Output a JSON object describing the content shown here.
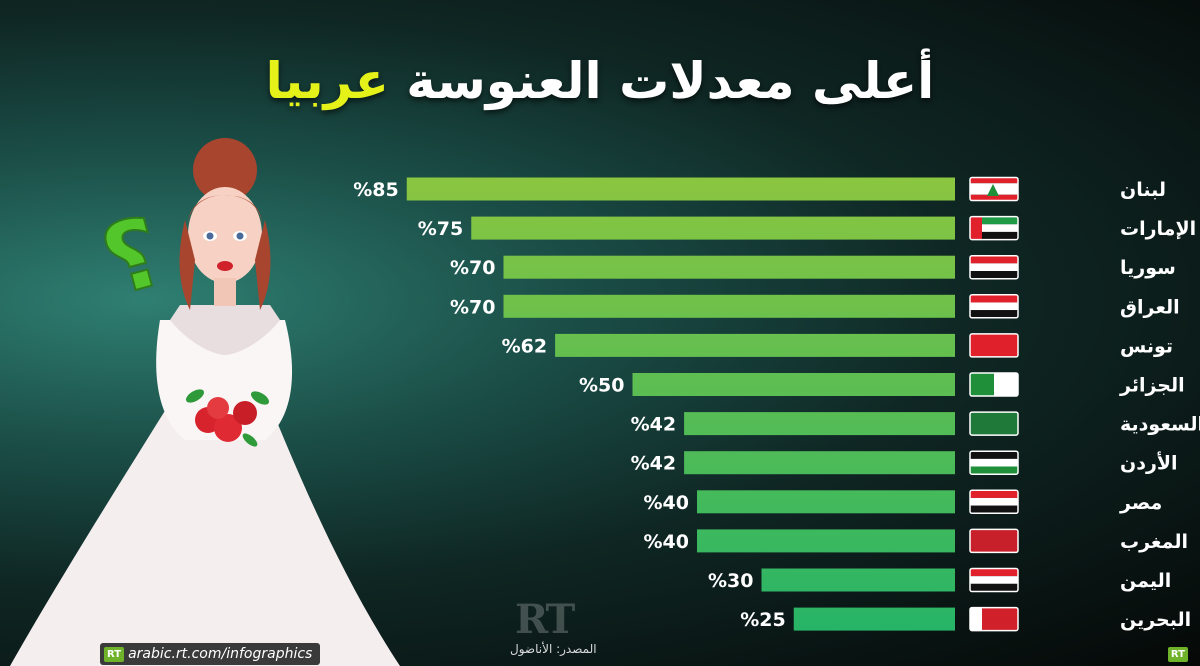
{
  "title_main": "أعلى معدلات العنوسة",
  "title_accent": "عربيا",
  "footer_url": "arabic.rt.com/infographics",
  "logo_text": "RT",
  "source": "المصدر: الأناضول",
  "colors": {
    "bar_top": "#8dc63f",
    "bar_bottom": "#1fb36a",
    "title_accent": "#e5f21a"
  },
  "chart_data": {
    "type": "bar",
    "orientation": "horizontal",
    "title": "أعلى معدلات العنوسة عربيا",
    "categories": [
      "لبنان",
      "الإمارات",
      "سوريا",
      "العراق",
      "تونس",
      "الجزائر",
      "السعودية",
      "الأردن",
      "مصر",
      "المغرب",
      "اليمن",
      "البحرين"
    ],
    "values": [
      85,
      75,
      70,
      70,
      62,
      50,
      42,
      42,
      40,
      40,
      30,
      25
    ],
    "value_labels": [
      "%85",
      "%75",
      "%70",
      "%70",
      "%62",
      "%50",
      "%42",
      "%42",
      "%40",
      "%40",
      "%30",
      "%25"
    ],
    "flag_icons": [
      "lebanon-flag-icon",
      "uae-flag-icon",
      "syria-flag-icon",
      "iraq-flag-icon",
      "tunisia-flag-icon",
      "algeria-flag-icon",
      "saudi-flag-icon",
      "jordan-flag-icon",
      "egypt-flag-icon",
      "morocco-flag-icon",
      "yemen-flag-icon",
      "bahrain-flag-icon"
    ],
    "xlim": [
      0,
      100
    ],
    "grid": false,
    "legend": "none"
  }
}
